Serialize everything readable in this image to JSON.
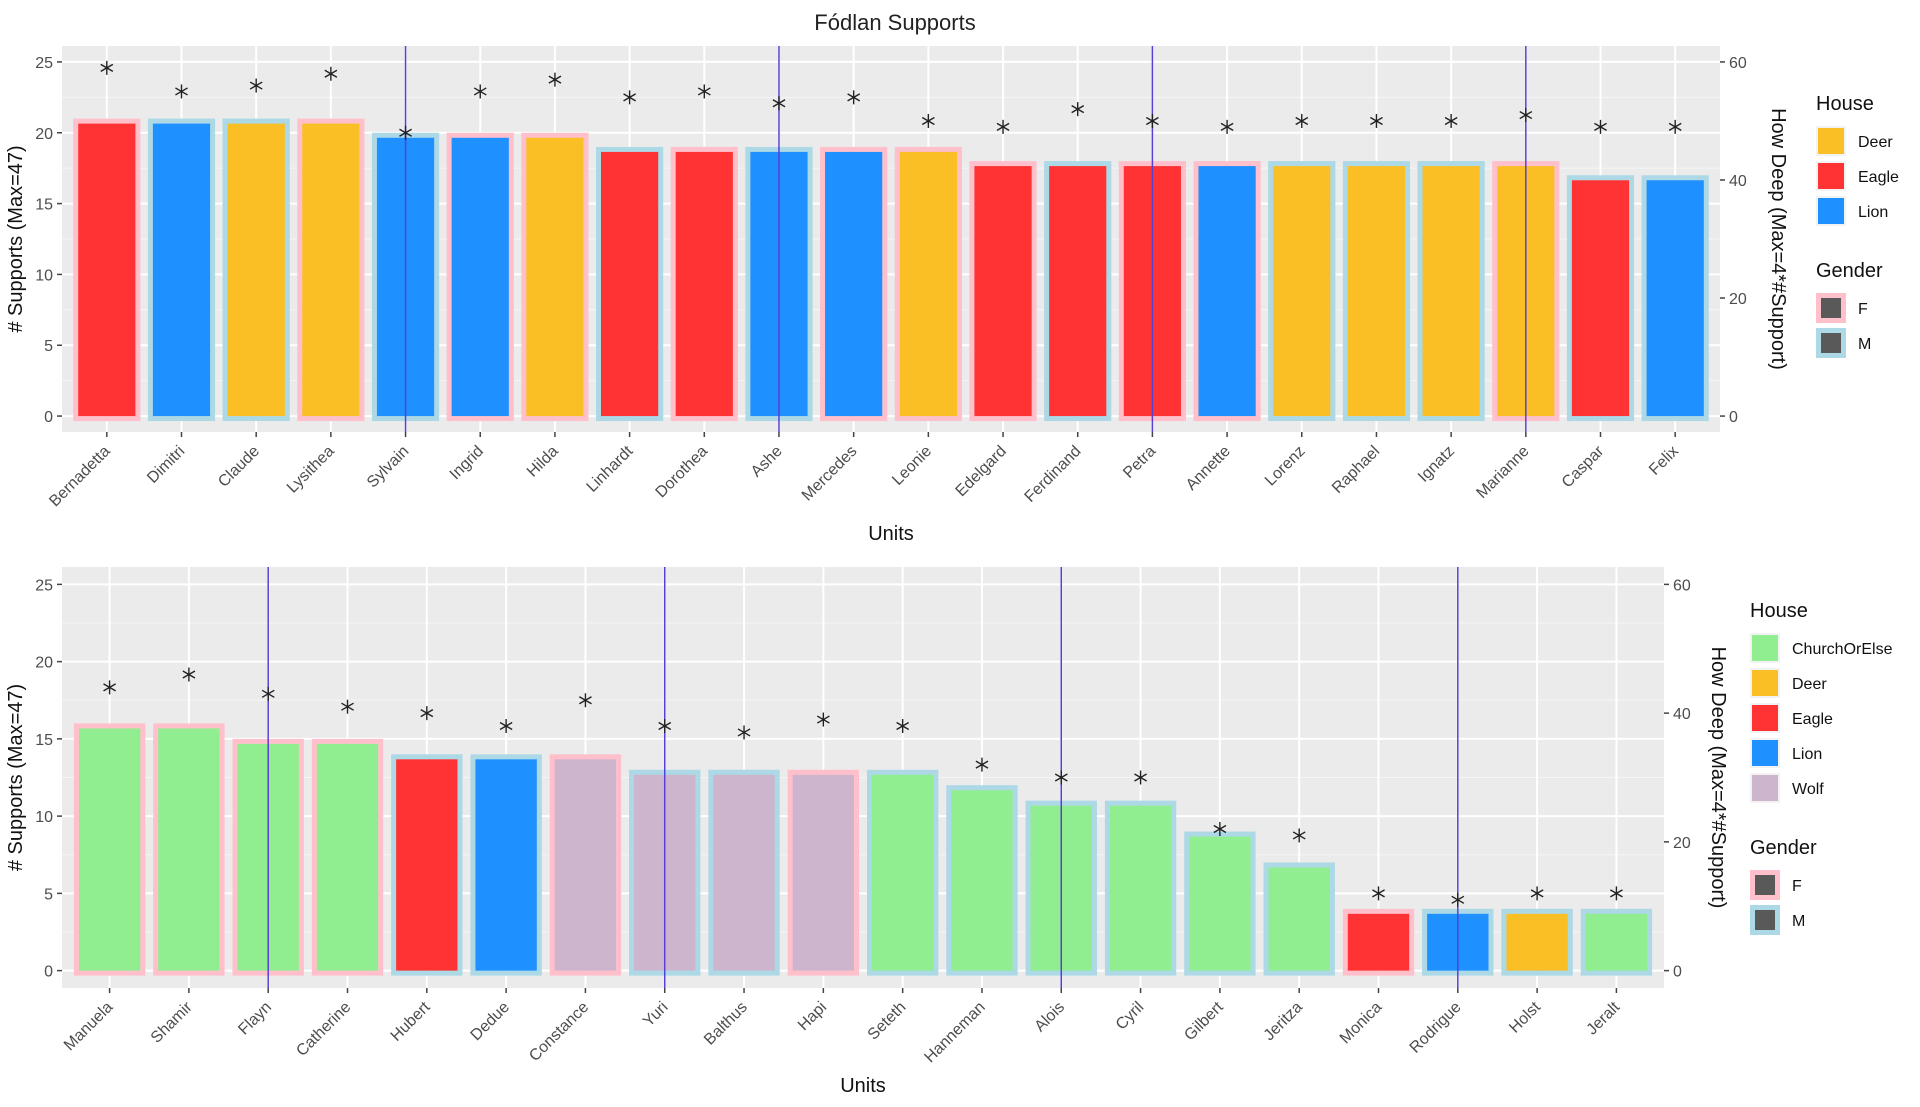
{
  "title": "Fódlan Supports",
  "colors": {
    "panel_bg": "#EBEBEB",
    "grid": "#FFFFFF",
    "vline": "#5A3FD6",
    "outline_F": "#FFC0CB",
    "outline_M": "#ADD8E6",
    "star": "#222222",
    "Deer": "#FBBF26",
    "Eagle": "#FF3333",
    "Lion": "#1E90FF",
    "ChurchOrElse": "#90EE90",
    "Wolf": "#CDB5CD"
  },
  "chart_data": [
    {
      "type": "bar",
      "xlabel": "Units",
      "ylabel": "# Supports (Max=47)",
      "y2label": "How Deep (Max=4*#Support)",
      "ylim": [
        0,
        25
      ],
      "y2lim": [
        0,
        60
      ],
      "yticks": [
        0,
        5,
        10,
        15,
        20,
        25
      ],
      "y2ticks": [
        0,
        20,
        40,
        60
      ],
      "categories": [
        "Bernadetta",
        "Dimitri",
        "Claude",
        "Lysithea",
        "Sylvain",
        "Ingrid",
        "Hilda",
        "Linhardt",
        "Dorothea",
        "Ashe",
        "Mercedes",
        "Leonie",
        "Edelgard",
        "Ferdinand",
        "Petra",
        "Annette",
        "Lorenz",
        "Raphael",
        "Ignatz",
        "Marianne",
        "Caspar",
        "Felix"
      ],
      "values": [
        21,
        21,
        21,
        21,
        20,
        20,
        20,
        19,
        19,
        19,
        19,
        19,
        18,
        18,
        18,
        18,
        18,
        18,
        18,
        18,
        17,
        17
      ],
      "depth": [
        59,
        55,
        56,
        58,
        48,
        55,
        57,
        54,
        55,
        53,
        54,
        50,
        49,
        52,
        50,
        49,
        50,
        50,
        50,
        51,
        49,
        49
      ],
      "house": [
        "Eagle",
        "Lion",
        "Deer",
        "Deer",
        "Lion",
        "Lion",
        "Deer",
        "Eagle",
        "Eagle",
        "Lion",
        "Lion",
        "Deer",
        "Eagle",
        "Eagle",
        "Eagle",
        "Lion",
        "Deer",
        "Deer",
        "Deer",
        "Deer",
        "Eagle",
        "Lion"
      ],
      "gender": [
        "F",
        "M",
        "M",
        "F",
        "M",
        "F",
        "F",
        "M",
        "F",
        "M",
        "F",
        "F",
        "F",
        "M",
        "F",
        "F",
        "M",
        "M",
        "M",
        "F",
        "M",
        "M"
      ],
      "vlines": [
        "Sylvain",
        "Ashe",
        "Petra",
        "Marianne"
      ],
      "legend_house_title": "House",
      "legend_house": [
        "Deer",
        "Eagle",
        "Lion"
      ],
      "legend_gender_title": "Gender",
      "legend_gender": [
        "F",
        "M"
      ]
    },
    {
      "type": "bar",
      "xlabel": "Units",
      "ylabel": "# Supports (Max=47)",
      "y2label": "How Deep (Max=4*#Support)",
      "ylim": [
        0,
        25
      ],
      "y2lim": [
        0,
        60
      ],
      "yticks": [
        0,
        5,
        10,
        15,
        20,
        25
      ],
      "y2ticks": [
        0,
        20,
        40,
        60
      ],
      "categories": [
        "Manuela",
        "Shamir",
        "Flayn",
        "Catherine",
        "Hubert",
        "Dedue",
        "Constance",
        "Yuri",
        "Balthus",
        "Hapi",
        "Seteth",
        "Hanneman",
        "Alois",
        "Cyril",
        "Gilbert",
        "Jeritza",
        "Monica",
        "Rodrigue",
        "Holst",
        "Jeralt"
      ],
      "values": [
        16,
        16,
        15,
        15,
        14,
        14,
        14,
        13,
        13,
        13,
        13,
        12,
        11,
        11,
        9,
        7,
        4,
        4,
        4,
        4
      ],
      "depth": [
        44,
        46,
        43,
        41,
        40,
        38,
        42,
        38,
        37,
        39,
        38,
        32,
        30,
        30,
        22,
        21,
        12,
        11,
        12,
        12
      ],
      "house": [
        "ChurchOrElse",
        "ChurchOrElse",
        "ChurchOrElse",
        "ChurchOrElse",
        "Eagle",
        "Lion",
        "Wolf",
        "Wolf",
        "Wolf",
        "Wolf",
        "ChurchOrElse",
        "ChurchOrElse",
        "ChurchOrElse",
        "ChurchOrElse",
        "ChurchOrElse",
        "ChurchOrElse",
        "Eagle",
        "Lion",
        "Deer",
        "ChurchOrElse"
      ],
      "gender": [
        "F",
        "F",
        "F",
        "F",
        "M",
        "M",
        "F",
        "M",
        "M",
        "F",
        "M",
        "M",
        "M",
        "M",
        "M",
        "M",
        "F",
        "M",
        "M",
        "M"
      ],
      "vlines": [
        "Flayn",
        "Yuri",
        "Alois",
        "Rodrigue"
      ],
      "legend_house_title": "House",
      "legend_house": [
        "ChurchOrElse",
        "Deer",
        "Eagle",
        "Lion",
        "Wolf"
      ],
      "legend_gender_title": "Gender",
      "legend_gender": [
        "F",
        "M"
      ]
    }
  ]
}
